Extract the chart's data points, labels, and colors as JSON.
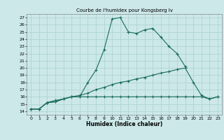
{
  "title": "Courbe de l'humidex pour Kongsberg Iv",
  "xlabel": "Humidex (Indice chaleur)",
  "xlim": [
    -0.5,
    23.5
  ],
  "ylim": [
    13.5,
    27.5
  ],
  "xticks": [
    0,
    1,
    2,
    3,
    4,
    5,
    6,
    7,
    8,
    9,
    10,
    11,
    12,
    13,
    14,
    15,
    16,
    17,
    18,
    19,
    20,
    21,
    22,
    23
  ],
  "yticks": [
    14,
    15,
    16,
    17,
    18,
    19,
    20,
    21,
    22,
    23,
    24,
    25,
    26,
    27
  ],
  "bg_color": "#cce8e8",
  "grid_color": "#aad0d0",
  "line_color": "#1a6b5a",
  "line1_x": [
    0,
    1,
    2,
    3,
    4,
    5,
    6,
    7,
    8,
    9,
    10,
    11,
    12,
    13,
    14,
    15,
    16,
    17,
    18,
    19
  ],
  "line1_y": [
    14.3,
    14.3,
    15.2,
    15.3,
    15.7,
    16.0,
    16.0,
    18.0,
    19.7,
    22.5,
    26.8,
    27.0,
    25.0,
    24.8,
    25.3,
    25.5,
    24.3,
    23.0,
    22.0,
    20.2
  ],
  "line2_x": [
    0,
    1,
    2,
    3,
    4,
    5,
    6,
    7,
    8,
    9,
    10,
    11,
    12,
    13,
    14,
    15,
    16,
    17,
    18,
    19,
    20,
    21,
    22,
    23
  ],
  "line2_y": [
    14.3,
    14.3,
    15.2,
    15.3,
    15.7,
    16.0,
    16.2,
    16.5,
    17.0,
    17.3,
    17.7,
    18.0,
    18.2,
    18.5,
    18.7,
    19.0,
    19.3,
    19.5,
    19.8,
    20.0,
    18.0,
    16.2,
    15.7,
    16.0
  ],
  "line3_x": [
    0,
    1,
    2,
    3,
    4,
    5,
    6,
    7,
    8,
    9,
    10,
    11,
    12,
    13,
    14,
    15,
    16,
    17,
    18,
    19,
    20,
    21,
    22,
    23
  ],
  "line3_y": [
    14.3,
    14.3,
    15.2,
    15.5,
    15.7,
    16.0,
    16.0,
    16.0,
    16.0,
    16.0,
    16.0,
    16.0,
    16.0,
    16.0,
    16.0,
    16.0,
    16.0,
    16.0,
    16.0,
    16.0,
    16.0,
    16.0,
    15.7,
    16.0
  ]
}
